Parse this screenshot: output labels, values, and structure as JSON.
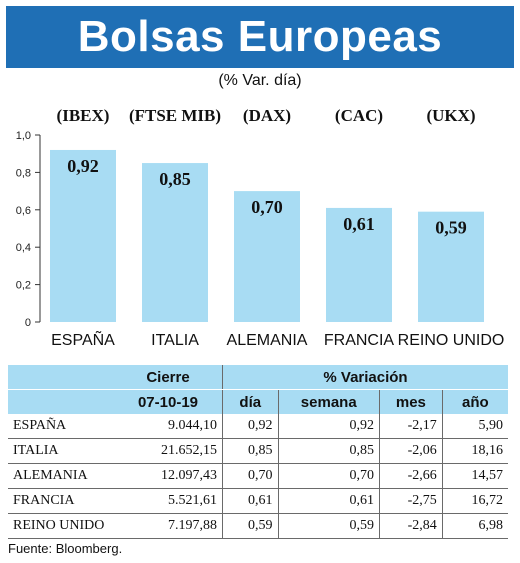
{
  "header": {
    "title": "Bolsas Europeas",
    "subtitle": "(% Var. día)"
  },
  "chart_data": {
    "type": "bar",
    "categories": [
      "ESPAÑA",
      "ITALIA",
      "ALEMANIA",
      "FRANCIA",
      "REINO UNIDO"
    ],
    "index_codes": [
      "(IBEX)",
      "(FTSE MIB)",
      "(DAX)",
      "(CAC)",
      "(UKX)"
    ],
    "values": [
      0.92,
      0.85,
      0.7,
      0.61,
      0.59
    ],
    "value_labels": [
      "0,92",
      "0,85",
      "0,70",
      "0,61",
      "0,59"
    ],
    "yticks": [
      0,
      0.2,
      0.4,
      0.6,
      0.8,
      1.0
    ],
    "ytick_labels": [
      "0",
      "0,2",
      "0,4",
      "0,6",
      "0,8",
      "1,0"
    ],
    "ylim": [
      0,
      1.0
    ],
    "bar_color": "#a8dcf3",
    "header_color": "#1f6fb5"
  },
  "table": {
    "header1": {
      "cierre": "Cierre",
      "variacion": "% Variación"
    },
    "header2": {
      "date": "07-10-19",
      "dia": "día",
      "semana": "semana",
      "mes": "mes",
      "anio": "año"
    },
    "rows": [
      {
        "name": "ESPAÑA",
        "cierre": "9.044,10",
        "dia": "0,92",
        "semana": "0,92",
        "mes": "-2,17",
        "anio": "5,90"
      },
      {
        "name": "ITALIA",
        "cierre": "21.652,15",
        "dia": "0,85",
        "semana": "0,85",
        "mes": "-2,06",
        "anio": "18,16"
      },
      {
        "name": "ALEMANIA",
        "cierre": "12.097,43",
        "dia": "0,70",
        "semana": "0,70",
        "mes": "-2,66",
        "anio": "14,57"
      },
      {
        "name": "FRANCIA",
        "cierre": "5.521,61",
        "dia": "0,61",
        "semana": "0,61",
        "mes": "-2,75",
        "anio": "16,72"
      },
      {
        "name": "REINO UNIDO",
        "cierre": "7.197,88",
        "dia": "0,59",
        "semana": "0,59",
        "mes": "-2,84",
        "anio": "6,98"
      }
    ]
  },
  "source": "Fuente: Bloomberg."
}
